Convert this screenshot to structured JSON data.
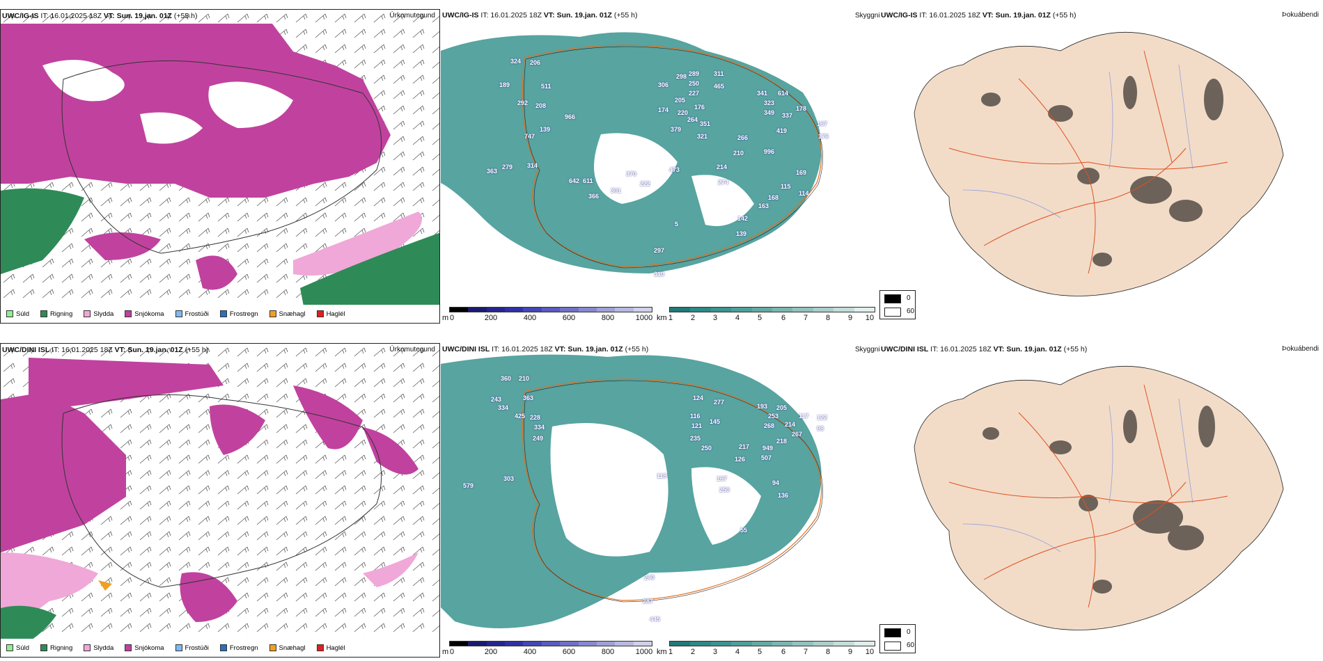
{
  "rows": [
    {
      "precip_title": {
        "model": "UWC/IG-IS",
        "it": "IT: 16.01.2025 18Z",
        "vt": "VT: Sun. 19.jan. 01Z",
        "lead": "(+55 h)"
      },
      "precip_label": "Úrkomutegund",
      "vis_title": {
        "model": "UWC/IG-IS",
        "it": "IT: 16.01.2025 18Z",
        "vt": "VT: Sun. 19.jan. 01Z",
        "lead": "(+55 h)"
      },
      "vis_label": "Skyggni",
      "fog_title": {
        "model": "UWC/IG-IS",
        "it": "IT: 16.01.2025 18Z",
        "vt": "VT: Sun. 19.jan. 01Z",
        "lead": "(+55 h)"
      },
      "fog_label": "Þokuábendi",
      "peaks": [
        "324",
        "206",
        "189",
        "511",
        "292",
        "208",
        "139",
        "747",
        "966",
        "306",
        "289",
        "298",
        "250",
        "311",
        "465",
        "174",
        "205",
        "227",
        "176",
        "220",
        "264",
        "351",
        "379",
        "321",
        "341",
        "614",
        "323",
        "349",
        "337",
        "178",
        "419",
        "167",
        "176",
        "266",
        "210",
        "996",
        "214",
        "274",
        "473",
        "370",
        "222",
        "642",
        "611",
        "301",
        "366",
        "279",
        "314",
        "363",
        "169",
        "115",
        "168",
        "163",
        "142",
        "139",
        "297",
        "310",
        "114",
        "5"
      ]
    },
    {
      "precip_title": {
        "model": "UWC/DINI ISL",
        "it": "IT: 16.01.2025 18Z",
        "vt": "VT: Sun. 19.jan. 01Z",
        "lead": "(+55 h)"
      },
      "precip_label": "Úrkomutegund",
      "vis_title": {
        "model": "UWC/DINI ISL",
        "it": "IT: 16.01.2025 18Z",
        "vt": "VT: Sun. 19.jan. 01Z",
        "lead": "(+55 h)"
      },
      "vis_label": "Skyggni",
      "fog_title": {
        "model": "UWC/DINI ISL",
        "it": "IT: 16.01.2025 18Z",
        "vt": "VT: Sun. 19.jan. 01Z",
        "lead": "(+55 h)"
      },
      "fog_label": "Þokuábendi",
      "peaks": [
        "360",
        "210",
        "243",
        "334",
        "363",
        "425",
        "228",
        "334",
        "249",
        "124",
        "277",
        "193",
        "205",
        "253",
        "268",
        "116",
        "121",
        "145",
        "235",
        "250",
        "217",
        "126",
        "949",
        "507",
        "214",
        "218",
        "267",
        "117",
        "122",
        "98",
        "167",
        "250",
        "94",
        "136",
        "118",
        "303",
        "579",
        "240",
        "287",
        "445",
        "55"
      ]
    }
  ],
  "precip_legend": [
    {
      "label": "Súld",
      "color": "#90ee90"
    },
    {
      "label": "Rigning",
      "color": "#2e8b57"
    },
    {
      "label": "Slydda",
      "color": "#f0a8d8"
    },
    {
      "label": "Snjókoma",
      "color": "#c040a0"
    },
    {
      "label": "Frostúði",
      "color": "#80b8f0"
    },
    {
      "label": "Frostregn",
      "color": "#2a70c0"
    },
    {
      "label": "Snæhagl",
      "color": "#f0a020"
    },
    {
      "label": "Haglél",
      "color": "#e02020"
    }
  ],
  "elev_colorbar": {
    "unit": "m",
    "ticks": [
      "0",
      "200",
      "400",
      "600",
      "800",
      "1000"
    ],
    "colors": [
      "#000000",
      "#1a1a70",
      "#252590",
      "#3030a8",
      "#4545b8",
      "#5a5ac0",
      "#7070c8",
      "#8888d0",
      "#a0a0d8",
      "#b8b8e0",
      "#d0d0ea"
    ]
  },
  "vis_colorbar": {
    "unit": "km",
    "ticks": [
      "1",
      "2",
      "3",
      "4",
      "5",
      "6",
      "7",
      "8",
      "9",
      "10"
    ],
    "colors": [
      "#1f7a78",
      "#2c8a86",
      "#3a948f",
      "#4e9f99",
      "#63aaa4",
      "#7ab6b0",
      "#92c3be",
      "#aacfcb",
      "#c4ddda",
      "#e0eeec"
    ]
  },
  "fog_legend": [
    {
      "label": "0",
      "color": "#000000"
    },
    {
      "label": "60",
      "color": "#ffffff"
    }
  ]
}
